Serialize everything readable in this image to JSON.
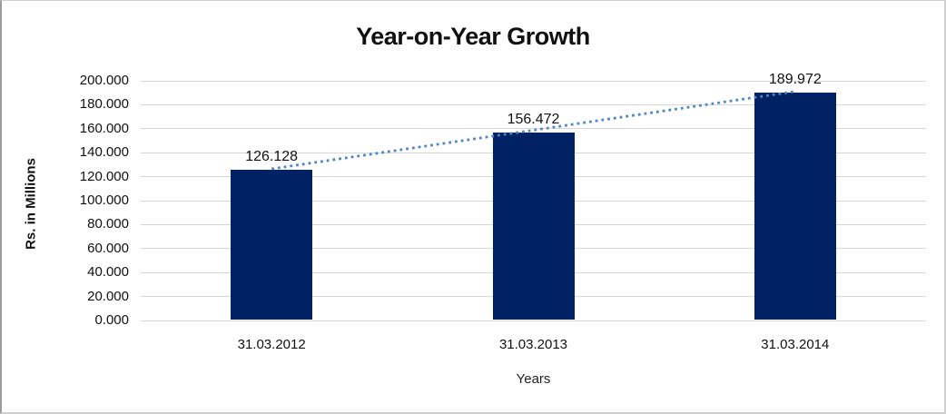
{
  "chart_data": {
    "type": "bar",
    "title": "Year-on-Year Growth",
    "xlabel": "Years",
    "ylabel": "Rs. in Millions",
    "categories": [
      "31.03.2012",
      "31.03.2013",
      "31.03.2014"
    ],
    "values": [
      126.128,
      156.472,
      189.972
    ],
    "data_labels": [
      "126.128",
      "156.472",
      "189.972"
    ],
    "yticks": [
      "0.000",
      "20.000",
      "40.000",
      "60.000",
      "80.000",
      "100.000",
      "120.000",
      "140.000",
      "160.000",
      "180.000",
      "200.000"
    ],
    "ylim": [
      0,
      200
    ],
    "ytick_step": 20,
    "grid": "horizontal",
    "legend": "none",
    "trendline": {
      "type": "linear",
      "style": "dotted",
      "color": "#4e86c0"
    },
    "colors": {
      "bar": "#002163",
      "gridline": "#d6d6d6",
      "text": "#111111",
      "frame_border": "#cfcfcf"
    }
  }
}
